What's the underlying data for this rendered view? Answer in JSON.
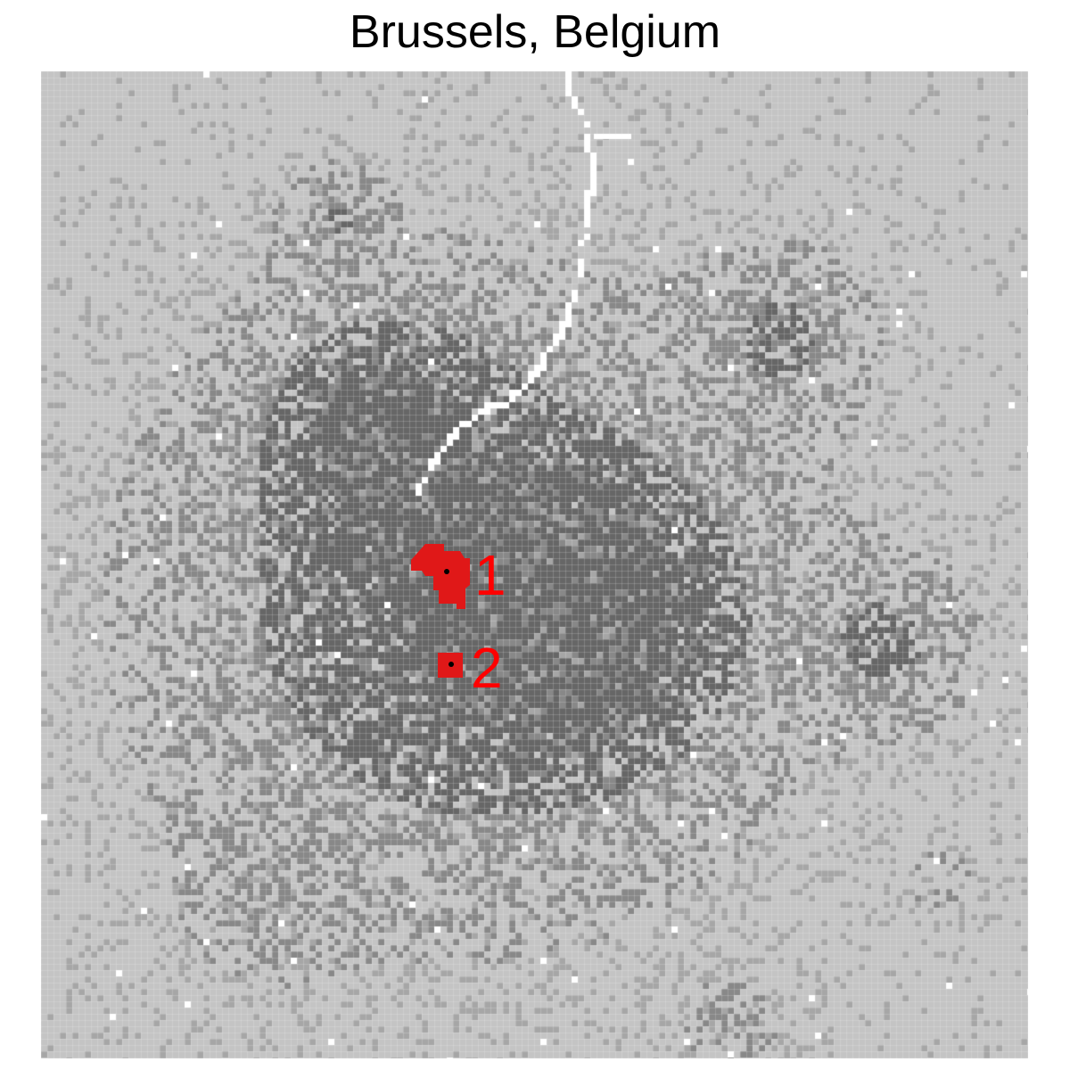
{
  "title": "Brussels, Belgium",
  "colors": {
    "background_cell": "#c4c4c4",
    "density_low": "#a6a6a6",
    "density_mid": "#888888",
    "density_high": "#666666",
    "road": "#ffffff",
    "cluster_fill": "#e01818",
    "center_dot": "#000000",
    "label": "#ff0000"
  },
  "clusters": [
    {
      "label": "1"
    },
    {
      "label": "2"
    }
  ]
}
